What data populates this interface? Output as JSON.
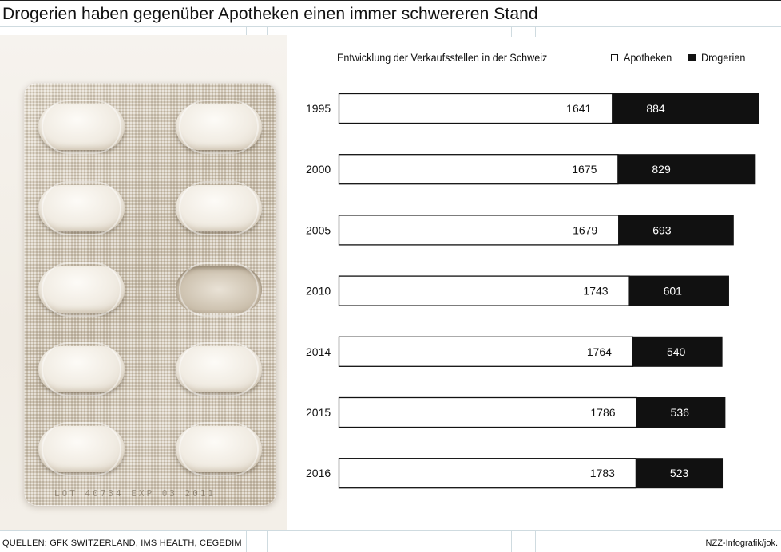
{
  "title": "Drogerien haben gegenüber Apotheken einen immer schwereren Stand",
  "chart_data": {
    "type": "bar",
    "stacked": true,
    "orientation": "horizontal",
    "title": "Entwicklung der Verkaufsstellen in der Schweiz",
    "categories": [
      "1995",
      "2000",
      "2005",
      "2010",
      "2014",
      "2015",
      "2016"
    ],
    "series": [
      {
        "name": "Apotheken",
        "color": "#ffffff",
        "values": [
          1641,
          1675,
          1679,
          1743,
          1764,
          1786,
          1783
        ]
      },
      {
        "name": "Drogerien",
        "color": "#111111",
        "values": [
          884,
          829,
          693,
          601,
          540,
          536,
          523
        ]
      }
    ],
    "legend_position": "top-right",
    "grid": false
  },
  "image": {
    "description_icon": "blister-pack-photo",
    "lot_text": "LOT 40734   EXP 03 2011"
  },
  "footer": {
    "source": "QUELLEN: GFK SWITZERLAND, IMS HEALTH, CEGEDIM",
    "credit": "NZZ-Infografik/jok."
  }
}
